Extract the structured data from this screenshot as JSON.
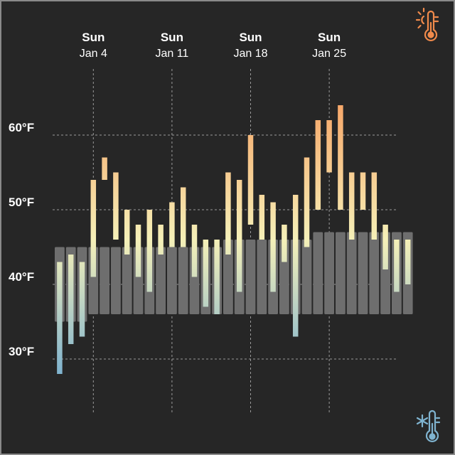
{
  "chart_data": {
    "type": "bar",
    "title": "",
    "xlabel": "",
    "ylabel": "",
    "unit": "°F",
    "ylim": [
      22,
      69
    ],
    "y_ticks": [
      {
        "value": 30,
        "label": "30°F"
      },
      {
        "value": 40,
        "label": "40°F"
      },
      {
        "value": 50,
        "label": "50°F"
      },
      {
        "value": 60,
        "label": "60°F"
      }
    ],
    "week_markers": [
      {
        "day_index": 3,
        "day": "Sun",
        "date": "Jan 4"
      },
      {
        "day_index": 10,
        "day": "Sun",
        "date": "Jan 11"
      },
      {
        "day_index": 17,
        "day": "Sun",
        "date": "Jan 18"
      },
      {
        "day_index": 24,
        "day": "Sun",
        "date": "Jan 25"
      }
    ],
    "series": [
      {
        "name": "",
        "kind": "observed temperature range (low–high)",
        "low": [
          28,
          32,
          33,
          41,
          54,
          46,
          44,
          41,
          39,
          44,
          45,
          45,
          41,
          37,
          36,
          44,
          39,
          48,
          46,
          39,
          43,
          33,
          45,
          50,
          55,
          50,
          46,
          50,
          46,
          42,
          39,
          40
        ],
        "high": [
          43,
          44,
          43,
          54,
          57,
          55,
          50,
          48,
          50,
          48,
          51,
          53,
          48,
          46,
          46,
          55,
          54,
          60,
          52,
          51,
          48,
          52,
          57,
          62,
          62,
          64,
          55,
          55,
          55,
          48,
          46,
          46
        ]
      },
      {
        "name": "",
        "kind": "normal temperature range (low–high)",
        "low": [
          35,
          35,
          35,
          36,
          36,
          36,
          36,
          36,
          36,
          36,
          36,
          36,
          36,
          36,
          36,
          36,
          36,
          36,
          36,
          36,
          36,
          36,
          36,
          36,
          36,
          36,
          36,
          36,
          36,
          36,
          36,
          36
        ],
        "high": [
          45,
          45,
          45,
          45,
          45,
          45,
          45,
          45,
          45,
          45,
          45,
          45,
          45,
          45,
          45,
          46,
          46,
          46,
          46,
          46,
          46,
          46,
          46,
          47,
          47,
          47,
          47,
          47,
          47,
          47,
          47,
          47
        ]
      }
    ],
    "grid": true,
    "colors": {
      "background": "#262626",
      "normal_band": "#6e6e6e",
      "gridline": "#9a9a9a",
      "cold": "#7fb3cf",
      "mild": "#f5f0b8",
      "warm": "#f7a86a"
    }
  },
  "icons": {
    "hot": "thermometer-sun-icon",
    "cold": "thermometer-snowflake-icon"
  }
}
